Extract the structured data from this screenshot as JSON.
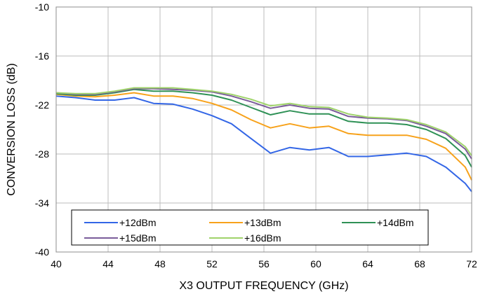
{
  "chart_data": {
    "type": "line",
    "title": "",
    "xlabel": "X3 OUTPUT FREQUENCY (GHz)",
    "ylabel": "CONVERSION LOSS (dB)",
    "xlim": [
      40,
      72
    ],
    "ylim": [
      -40,
      -10
    ],
    "xticks": [
      40,
      44,
      48,
      52,
      56,
      60,
      64,
      68,
      72
    ],
    "yticks": [
      -40,
      -34,
      -28,
      -22,
      -16,
      -10
    ],
    "grid": true,
    "legend_position": "bottom-center",
    "x": [
      40,
      41.5,
      43,
      44.5,
      46,
      47.5,
      49,
      50.5,
      52,
      53.5,
      55,
      56.5,
      58,
      59.5,
      61,
      62.5,
      64,
      65.5,
      67,
      68.5,
      70,
      71.5,
      72
    ],
    "series": [
      {
        "name": "+12dBm",
        "color": "#3366e6",
        "values": [
          -20.9,
          -21.1,
          -21.4,
          -21.4,
          -21.1,
          -21.8,
          -21.9,
          -22.5,
          -23.3,
          -24.3,
          -26.1,
          -27.9,
          -27.2,
          -27.5,
          -27.2,
          -28.3,
          -28.3,
          -28.1,
          -27.9,
          -28.3,
          -29.6,
          -31.6,
          -32.6
        ]
      },
      {
        "name": "+13dBm",
        "color": "#f7a21b",
        "values": [
          -20.7,
          -20.9,
          -21.0,
          -20.8,
          -20.5,
          -20.9,
          -20.9,
          -21.2,
          -21.8,
          -22.6,
          -23.8,
          -24.8,
          -24.3,
          -24.8,
          -24.6,
          -25.5,
          -25.7,
          -25.7,
          -25.7,
          -26.2,
          -27.3,
          -29.6,
          -31.2
        ]
      },
      {
        "name": "+14dBm",
        "color": "#2f9156",
        "values": [
          -20.6,
          -20.8,
          -20.8,
          -20.5,
          -20.1,
          -20.3,
          -20.3,
          -20.5,
          -20.8,
          -21.4,
          -22.3,
          -23.2,
          -22.7,
          -23.1,
          -23.1,
          -24.0,
          -24.2,
          -24.2,
          -24.4,
          -25.0,
          -26.1,
          -28.2,
          -29.6
        ]
      },
      {
        "name": "+15dBm",
        "color": "#7a5c9a",
        "values": [
          -20.5,
          -20.7,
          -20.7,
          -20.4,
          -20.0,
          -20.0,
          -20.1,
          -20.2,
          -20.4,
          -20.9,
          -21.6,
          -22.4,
          -22.0,
          -22.4,
          -22.5,
          -23.4,
          -23.6,
          -23.7,
          -23.9,
          -24.6,
          -25.5,
          -27.4,
          -28.6
        ]
      },
      {
        "name": "+16dBm",
        "color": "#9fd36a",
        "values": [
          -20.5,
          -20.6,
          -20.6,
          -20.3,
          -19.9,
          -19.9,
          -19.9,
          -20.1,
          -20.3,
          -20.7,
          -21.3,
          -22.1,
          -21.8,
          -22.2,
          -22.3,
          -23.1,
          -23.5,
          -23.6,
          -23.8,
          -24.4,
          -25.3,
          -27.1,
          -28.2
        ]
      }
    ]
  }
}
